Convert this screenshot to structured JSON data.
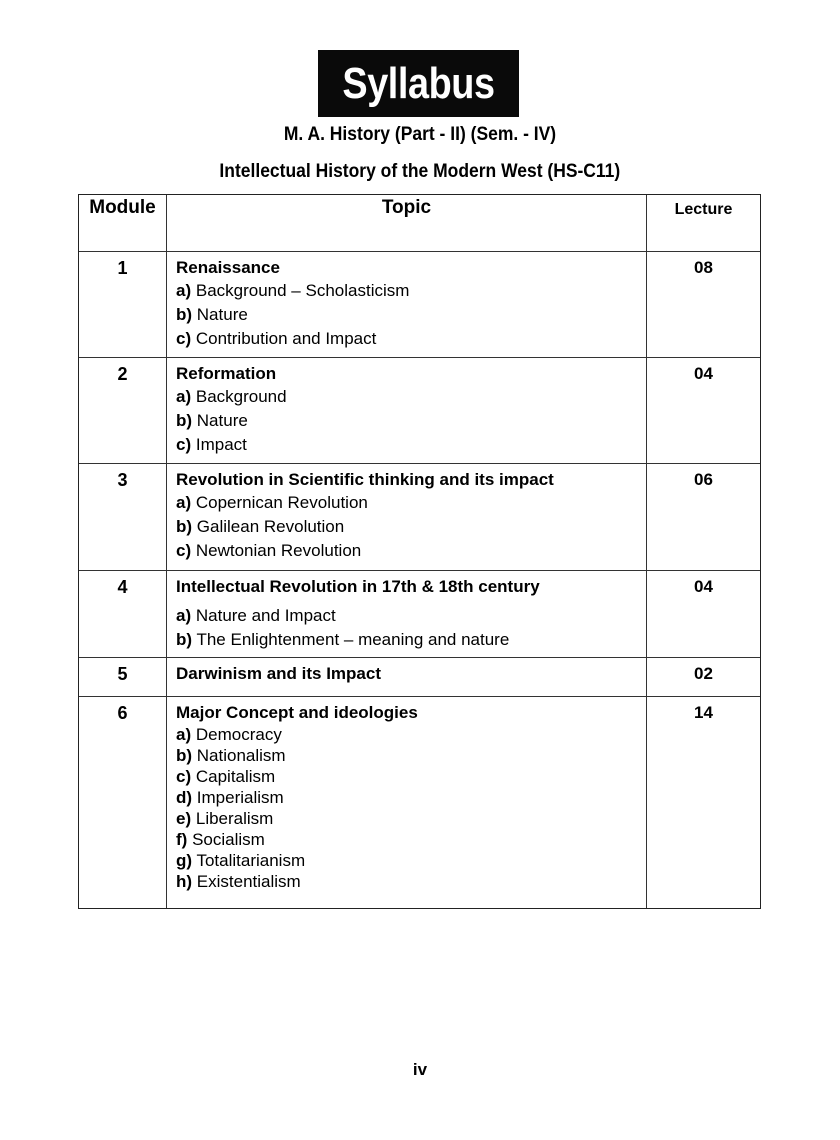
{
  "title": "Syllabus",
  "subtitle": "M. A. History (Part - II) (Sem. - IV)",
  "course_title": "Intellectual History of the Modern West (HS-C11)",
  "table": {
    "headers": {
      "module": "Module",
      "topic": "Topic",
      "lecture": "Lecture"
    },
    "rows": [
      {
        "module": "1",
        "topic": "Renaissance",
        "lectures": "08",
        "items": [
          {
            "label": "a)",
            "text": "Background – Scholasticism"
          },
          {
            "label": "b)",
            "text": " Nature"
          },
          {
            "label": "c)",
            "text": "Contribution and Impact"
          }
        ]
      },
      {
        "module": "2",
        "topic": "Reformation",
        "lectures": "04",
        "items": [
          {
            "label": "a)",
            "text": "Background"
          },
          {
            "label": "b)",
            "text": "Nature"
          },
          {
            "label": "c)",
            "text": "Impact"
          }
        ]
      },
      {
        "module": "3",
        "topic": "Revolution in Scientific thinking and its impact",
        "lectures": "06",
        "items": [
          {
            "label": "a)",
            "text": "Copernican Revolution"
          },
          {
            "label": "b)",
            "text": "Galilean Revolution"
          },
          {
            "label": "c)",
            "text": "Newtonian Revolution"
          }
        ]
      },
      {
        "module": "4",
        "topic": "Intellectual Revolution in 17th & 18th century",
        "lectures": "04",
        "items": [
          {
            "label": "a)",
            "text": "Nature and Impact"
          },
          {
            "label": "b)",
            "text": "The Enlightenment – meaning and nature"
          }
        ]
      },
      {
        "module": "5",
        "topic": "Darwinism and its Impact",
        "lectures": "02",
        "items": []
      },
      {
        "module": "6",
        "topic": "Major Concept and ideologies",
        "lectures": "14",
        "items": [
          {
            "label": "a)",
            "text": "Democracy"
          },
          {
            "label": "b)",
            "text": "Nationalism"
          },
          {
            "label": "c)",
            "text": "Capitalism"
          },
          {
            "label": "d)",
            "text": "Imperialism"
          },
          {
            "label": "e)",
            "text": "Liberalism"
          },
          {
            "label": "f)",
            "text": " Socialism"
          },
          {
            "label": "g)",
            "text": "Totalitarianism"
          },
          {
            "label": "h)",
            "text": "Existentialism"
          }
        ]
      }
    ]
  },
  "page_number": "iv"
}
